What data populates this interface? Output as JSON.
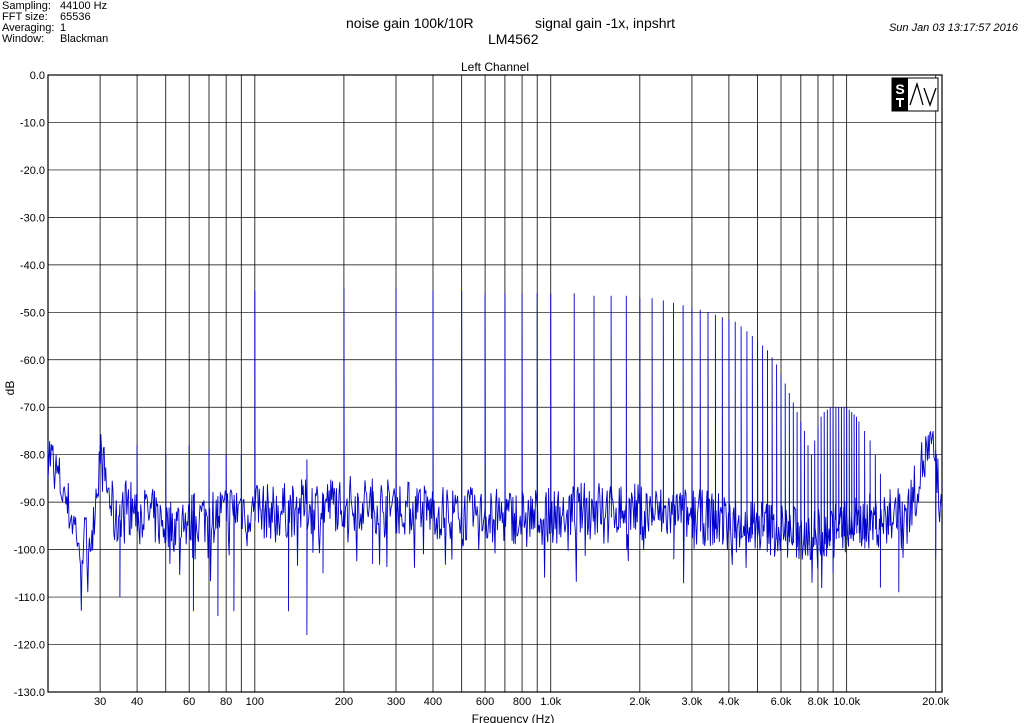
{
  "header": {
    "settings": [
      {
        "label": "Sampling:",
        "value": "44100 Hz"
      },
      {
        "label": "FFT size:",
        "value": "65536"
      },
      {
        "label": "Averaging:",
        "value": "1"
      },
      {
        "label": "Window:",
        "value": "Blackman"
      }
    ],
    "title_line1a": "noise gain 100k/10R",
    "title_line1b": "signal gain -1x, inpshrt",
    "title_line2": "LM4562",
    "timestamp": "Sun Jan 03 13:17:57 2016"
  },
  "chart_data": {
    "type": "line",
    "title": "Left Channel",
    "xlabel": "Frequency (Hz)",
    "ylabel": "dB",
    "x_scale": "log",
    "xlim": [
      20,
      21000
    ],
    "ylim": [
      -130,
      0
    ],
    "grid": true,
    "x_ticks": [
      {
        "v": 30,
        "label": "30"
      },
      {
        "v": 40,
        "label": "40"
      },
      {
        "v": 60,
        "label": "60"
      },
      {
        "v": 80,
        "label": "80"
      },
      {
        "v": 100,
        "label": "100"
      },
      {
        "v": 200,
        "label": "200"
      },
      {
        "v": 300,
        "label": "300"
      },
      {
        "v": 400,
        "label": "400"
      },
      {
        "v": 600,
        "label": "600"
      },
      {
        "v": 800,
        "label": "800"
      },
      {
        "v": 1000,
        "label": "1.0k"
      },
      {
        "v": 2000,
        "label": "2.0k"
      },
      {
        "v": 3000,
        "label": "3.0k"
      },
      {
        "v": 4000,
        "label": "4.0k"
      },
      {
        "v": 6000,
        "label": "6.0k"
      },
      {
        "v": 8000,
        "label": "8.0k"
      },
      {
        "v": 10000,
        "label": "10.0k"
      },
      {
        "v": 20000,
        "label": "20.0k"
      }
    ],
    "x_grid": [
      30,
      40,
      50,
      60,
      70,
      80,
      90,
      100,
      200,
      300,
      400,
      500,
      600,
      700,
      800,
      900,
      1000,
      2000,
      3000,
      4000,
      5000,
      6000,
      7000,
      8000,
      9000,
      10000,
      20000
    ],
    "y_ticks": [
      {
        "v": 0,
        "label": "0.0"
      },
      {
        "v": -10,
        "label": "-10.0"
      },
      {
        "v": -20,
        "label": "-20.0"
      },
      {
        "v": -30,
        "label": "-30.0"
      },
      {
        "v": -40,
        "label": "-40.0"
      },
      {
        "v": -50,
        "label": "-50.0"
      },
      {
        "v": -60,
        "label": "-60.0"
      },
      {
        "v": -70,
        "label": "-70.0"
      },
      {
        "v": -80,
        "label": "-80.0"
      },
      {
        "v": -90,
        "label": "-90.0"
      },
      {
        "v": -100,
        "label": "-100.0"
      },
      {
        "v": -110,
        "label": "-110.0"
      },
      {
        "v": -120,
        "label": "-120.0"
      },
      {
        "v": -130,
        "label": "-130.0"
      }
    ],
    "line_color": "#0000cc",
    "series": [
      {
        "floor": [
          [
            20,
            -79
          ],
          [
            22,
            -86
          ],
          [
            24,
            -93
          ],
          [
            26,
            -99
          ],
          [
            28,
            -97
          ],
          [
            30,
            -80
          ],
          [
            32,
            -88
          ],
          [
            34,
            -95
          ],
          [
            36,
            -90
          ],
          [
            40,
            -92
          ],
          [
            45,
            -93
          ],
          [
            50,
            -95
          ],
          [
            60,
            -94
          ],
          [
            70,
            -93
          ],
          [
            80,
            -92
          ],
          [
            90,
            -91
          ],
          [
            100,
            -92
          ],
          [
            120,
            -92
          ],
          [
            150,
            -91
          ],
          [
            200,
            -90
          ],
          [
            300,
            -91
          ],
          [
            400,
            -92
          ],
          [
            600,
            -93
          ],
          [
            800,
            -93
          ],
          [
            1000,
            -93
          ],
          [
            1200,
            -92
          ],
          [
            1500,
            -91
          ],
          [
            2000,
            -92
          ],
          [
            3000,
            -93
          ],
          [
            4000,
            -94
          ],
          [
            5000,
            -95
          ],
          [
            6000,
            -96
          ],
          [
            7000,
            -97
          ],
          [
            8000,
            -97
          ],
          [
            9000,
            -96
          ],
          [
            10000,
            -95
          ],
          [
            12000,
            -94
          ],
          [
            14000,
            -93
          ],
          [
            16000,
            -92
          ],
          [
            17000,
            -88
          ],
          [
            18000,
            -82
          ],
          [
            19000,
            -79
          ],
          [
            20000,
            -81
          ],
          [
            21000,
            -95
          ]
        ],
        "spikes": [
          [
            20,
            -79
          ],
          [
            30,
            -79
          ],
          [
            40,
            -78
          ],
          [
            50,
            -80
          ],
          [
            60,
            -78
          ],
          [
            70,
            -79
          ],
          [
            80,
            -80
          ],
          [
            90,
            -80
          ],
          [
            100,
            -45.5
          ],
          [
            150,
            -81
          ],
          [
            200,
            -45
          ],
          [
            300,
            -45
          ],
          [
            400,
            -45.5
          ],
          [
            500,
            -45.5
          ],
          [
            600,
            -46
          ],
          [
            700,
            -46
          ],
          [
            800,
            -46
          ],
          [
            900,
            -46
          ],
          [
            1000,
            -46
          ],
          [
            1200,
            -46
          ],
          [
            1400,
            -46.5
          ],
          [
            1600,
            -46.5
          ],
          [
            1800,
            -46.5
          ],
          [
            2000,
            -47
          ],
          [
            2200,
            -47
          ],
          [
            2400,
            -47.5
          ],
          [
            2600,
            -48
          ],
          [
            2800,
            -48.5
          ],
          [
            3000,
            -49
          ],
          [
            3200,
            -49.5
          ],
          [
            3400,
            -50
          ],
          [
            3600,
            -50.5
          ],
          [
            3800,
            -51
          ],
          [
            4000,
            -51.5
          ],
          [
            4200,
            -52
          ],
          [
            4400,
            -53
          ],
          [
            4600,
            -54
          ],
          [
            4800,
            -55
          ],
          [
            5000,
            -56
          ],
          [
            5200,
            -57
          ],
          [
            5400,
            -58
          ],
          [
            5600,
            -59.5
          ],
          [
            5800,
            -61
          ],
          [
            6000,
            -63
          ],
          [
            6200,
            -65
          ],
          [
            6400,
            -67
          ],
          [
            6600,
            -69
          ],
          [
            6800,
            -71
          ],
          [
            7000,
            -73
          ],
          [
            7200,
            -75
          ],
          [
            7400,
            -78
          ],
          [
            7600,
            -80
          ],
          [
            7800,
            -77
          ],
          [
            8000,
            -74
          ],
          [
            8200,
            -72
          ],
          [
            8400,
            -71
          ],
          [
            8600,
            -70.5
          ],
          [
            8800,
            -70
          ],
          [
            9000,
            -70
          ],
          [
            9200,
            -70
          ],
          [
            9400,
            -70
          ],
          [
            9600,
            -70
          ],
          [
            9800,
            -70
          ],
          [
            10000,
            -70
          ],
          [
            10200,
            -70.5
          ],
          [
            10400,
            -71
          ],
          [
            10600,
            -71.5
          ],
          [
            10800,
            -72
          ],
          [
            11000,
            -73
          ],
          [
            11500,
            -75
          ],
          [
            12000,
            -77
          ],
          [
            12500,
            -80
          ],
          [
            13000,
            -84
          ],
          [
            14000,
            -89
          ]
        ],
        "dips": [
          [
            35,
            -110
          ],
          [
            62,
            -113
          ],
          [
            75,
            -114
          ],
          [
            85,
            -113
          ],
          [
            130,
            -113
          ],
          [
            150,
            -118
          ],
          [
            170,
            -105
          ],
          [
            250,
            -103
          ],
          [
            9000,
            -105
          ],
          [
            13000,
            -108
          ],
          [
            15000,
            -109
          ],
          [
            20000,
            -102
          ]
        ]
      }
    ]
  }
}
